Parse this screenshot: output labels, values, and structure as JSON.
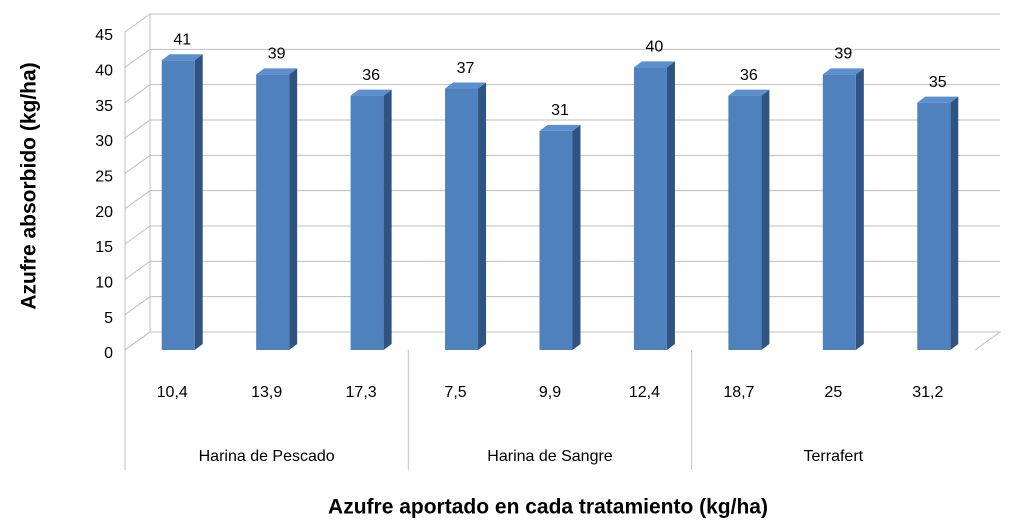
{
  "chart_data": {
    "type": "bar3d",
    "ylabel": "Azufre absorbido (kg/ha)",
    "xlabel": "Azufre aportado en cada tratamiento (kg/ha)",
    "categories": [
      "10,4",
      "13,9",
      "17,3",
      "7,5",
      "9,9",
      "12,4",
      "18,7",
      "25",
      "31,2"
    ],
    "category_groups": [
      "Harina de Pescado",
      "Harina de Sangre",
      "Terrafert"
    ],
    "values": [
      41,
      39,
      36,
      37,
      31,
      40,
      36,
      39,
      35
    ],
    "color": "#4f81bd",
    "ylim": [
      0,
      45
    ],
    "yticks": [
      0,
      5,
      10,
      15,
      20,
      25,
      30,
      35,
      40,
      45
    ],
    "grid": true
  }
}
